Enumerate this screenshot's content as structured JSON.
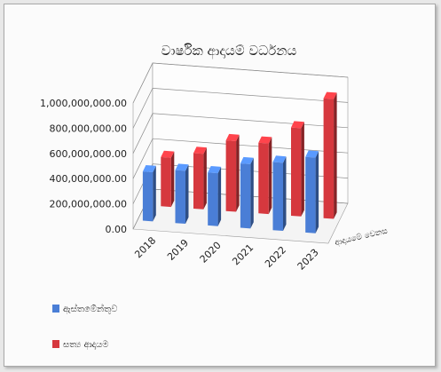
{
  "chart_data": {
    "type": "bar",
    "title": "වාර්ෂික ආදායම් වර්ධනය",
    "categories": [
      "2018",
      "2019",
      "2020",
      "2021",
      "2022",
      "2023"
    ],
    "depth_label": "ආදායමේ වෙනස",
    "yticks": [
      "0.00",
      "200,000,000.00",
      "400,000,000.00",
      "600,000,000.00",
      "800,000,000.00",
      "1,000,000,000.00"
    ],
    "ylim": [
      0,
      1000000000
    ],
    "series": [
      {
        "name": "ඇස්තමේන්තුව",
        "color": "#4a7ed6",
        "values": [
          390000000,
          420000000,
          420000000,
          510000000,
          540000000,
          600000000
        ]
      },
      {
        "name": "සත්‍ය ආදායම",
        "color": "#d6383e",
        "values": [
          390000000,
          440000000,
          560000000,
          560000000,
          700000000,
          950000000
        ]
      }
    ],
    "grid": true,
    "legend": "bottom-left"
  }
}
